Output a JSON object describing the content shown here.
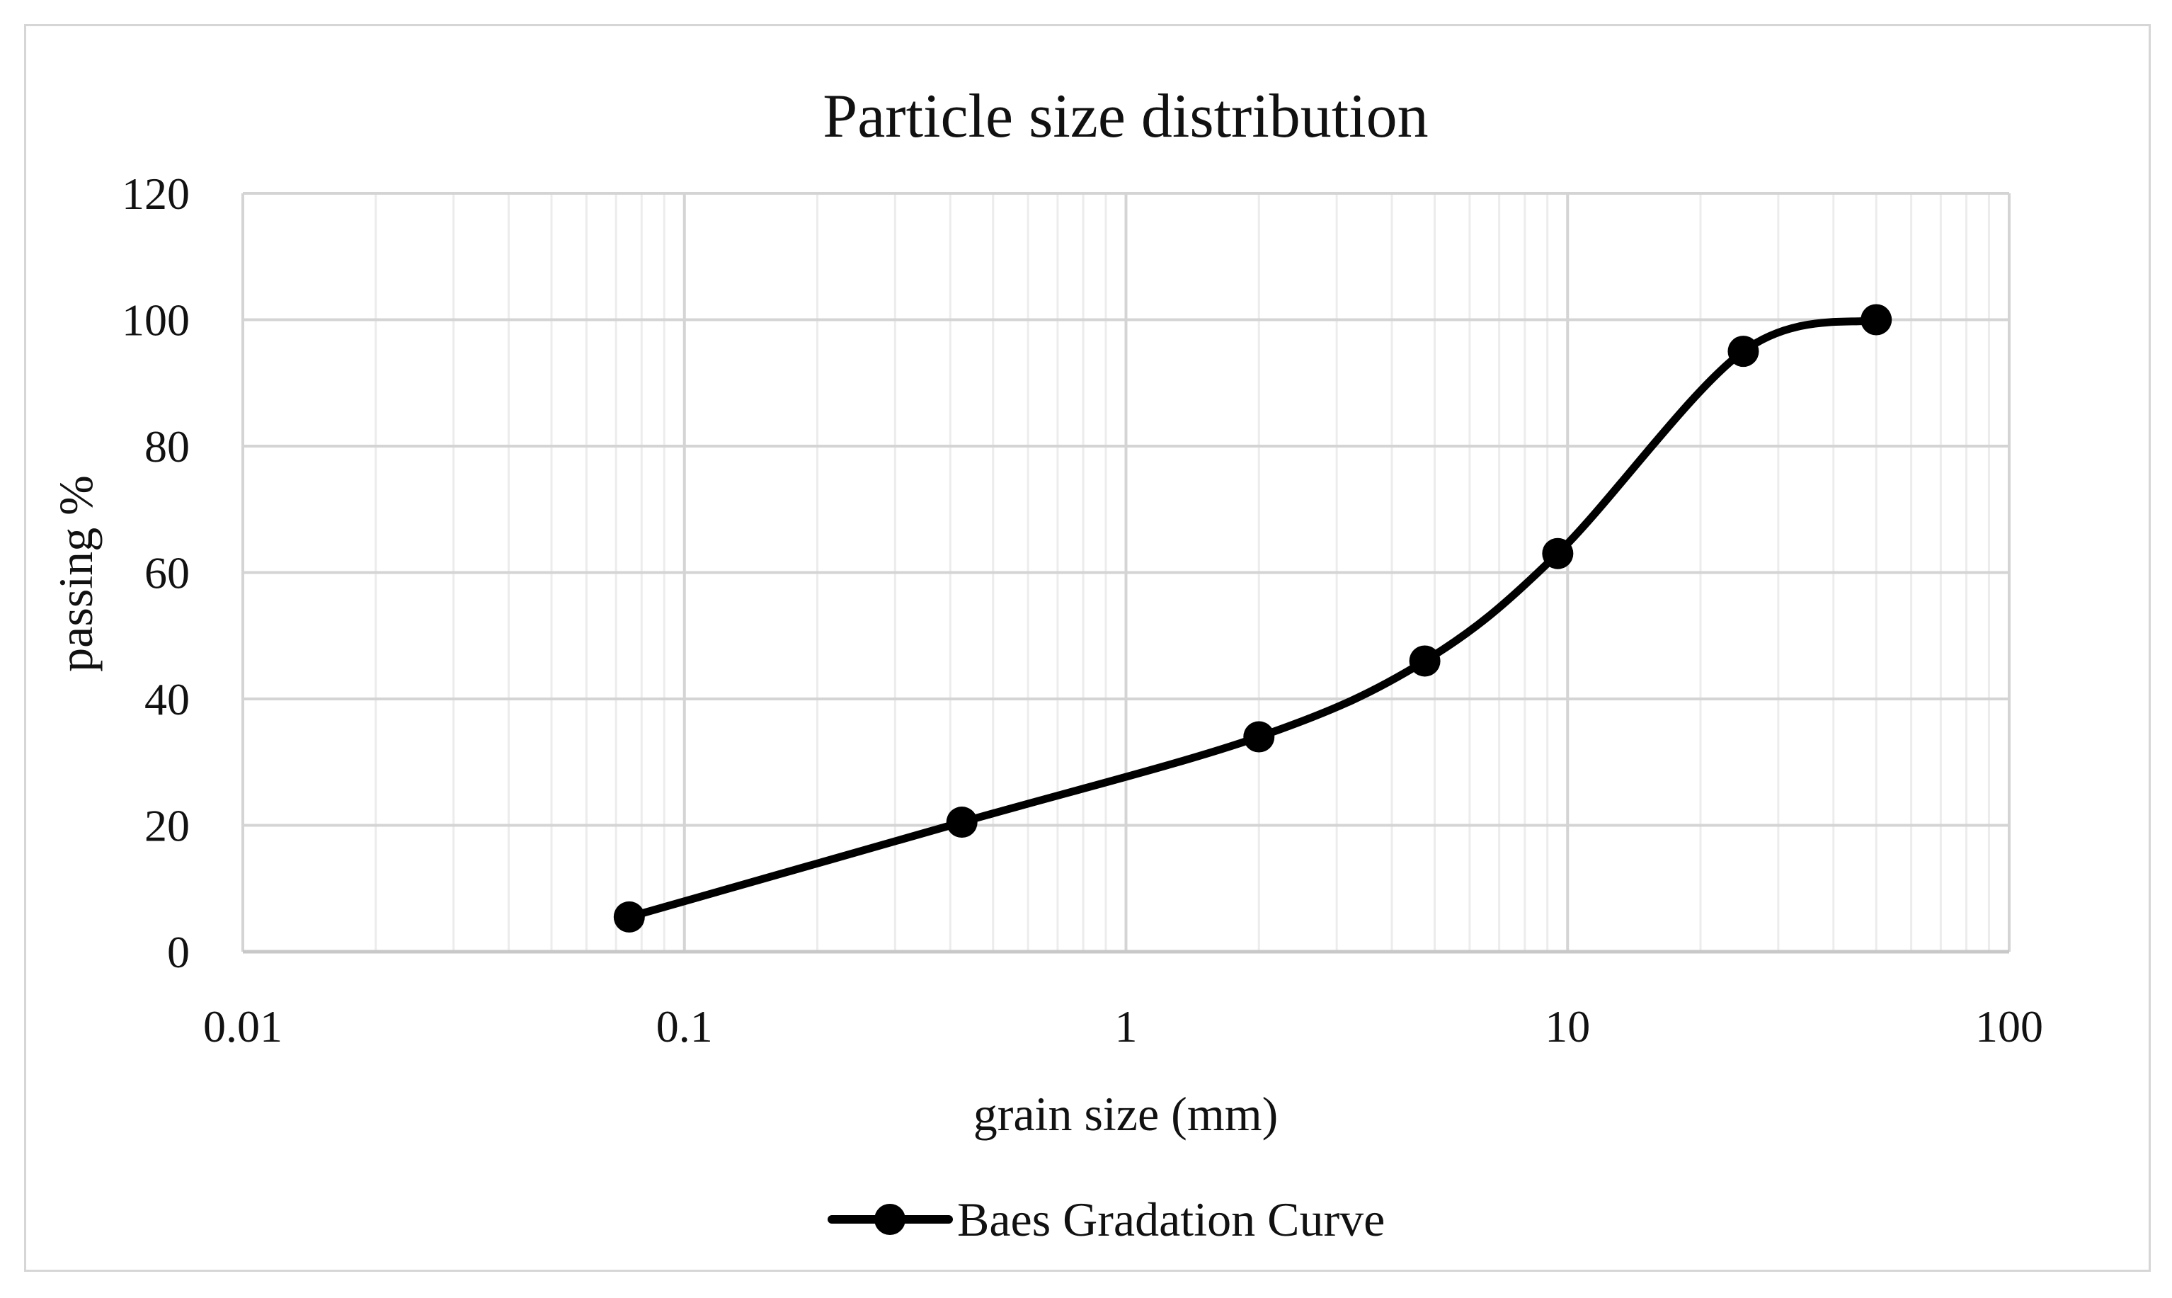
{
  "chart_data": {
    "type": "line",
    "title": "Particle size distribution",
    "xlabel": "grain size (mm)",
    "ylabel": "passing %",
    "xscale": "log",
    "xlim": [
      0.01,
      100
    ],
    "ylim": [
      0,
      120
    ],
    "xticks": [
      "0.01",
      "0.1",
      "1",
      "10",
      "100"
    ],
    "yticks": [
      "0",
      "20",
      "40",
      "60",
      "80",
      "100",
      "120"
    ],
    "grid": true,
    "legend_position": "bottom",
    "series": [
      {
        "name": "Baes Gradation Curve",
        "color": "#000000",
        "marker": "circle",
        "smooth": true,
        "x": [
          0.075,
          0.425,
          2,
          4.75,
          9.5,
          25,
          50
        ],
        "y": [
          5.5,
          20.5,
          34,
          46,
          63,
          95,
          100
        ]
      }
    ]
  }
}
